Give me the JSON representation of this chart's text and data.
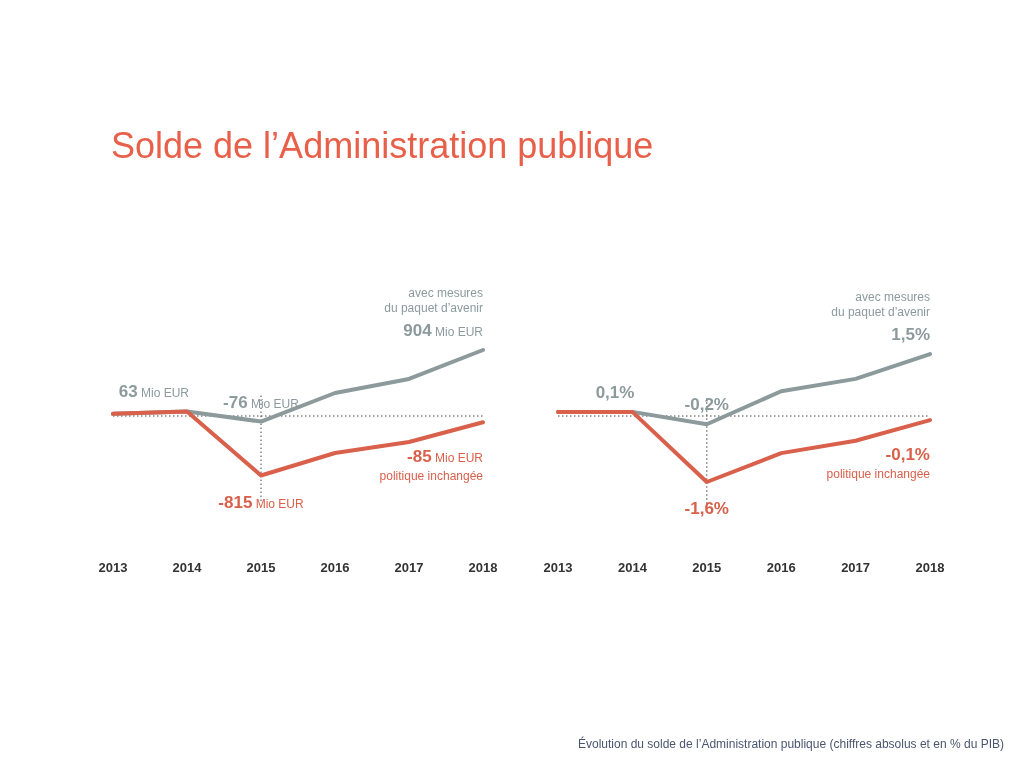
{
  "chart_data": [
    {
      "type": "line",
      "title": "Solde de l’Administration publique",
      "x": [
        2013,
        2014,
        2015,
        2016,
        2017,
        2018
      ],
      "xlim": [
        2013,
        2018
      ],
      "xticks": [
        2013,
        2014,
        2015,
        2016,
        2017,
        2018
      ],
      "tick_labels": "x",
      "grid": false,
      "marker": "none",
      "line_style": "solid",
      "series": [
        {
          "name": "avec mesures\ndu paquet d’avenir",
          "color": "#8c9a9c",
          "values": [
            30,
            63,
            -76,
            315,
            507,
            904
          ],
          "value_labels": [
            null,
            "63 Mio EUR",
            "-76 Mio EUR",
            null,
            null,
            "904 Mio EUR"
          ]
        },
        {
          "name": "politique inchangée",
          "color": "#d9604a",
          "values": [
            30,
            63,
            -815,
            -507,
            -356,
            -85
          ],
          "value_labels": [
            null,
            null,
            "-815 Mio EUR",
            null,
            null,
            "-85 Mio EUR"
          ]
        }
      ],
      "ref_lines": [
        {
          "axis": "y",
          "value": 0,
          "line_style": "dotted"
        },
        {
          "axis": "x",
          "value": 2015,
          "line_style": "dotted"
        }
      ]
    },
    {
      "type": "line",
      "x": [
        2013,
        2014,
        2015,
        2016,
        2017,
        2018
      ],
      "xlim": [
        2013,
        2018
      ],
      "xticks": [
        2013,
        2014,
        2015,
        2016,
        2017,
        2018
      ],
      "tick_labels": "x",
      "grid": false,
      "marker": "none",
      "line_style": "solid",
      "series": [
        {
          "name": "avec mesures\ndu paquet d’avenir",
          "color": "#8c9a9c",
          "values": [
            0.1,
            0.1,
            -0.2,
            0.6,
            0.9,
            1.5
          ],
          "value_labels": [
            null,
            "0,1%",
            "-0,2%",
            null,
            null,
            "1,5%"
          ]
        },
        {
          "name": "politique inchangée",
          "color": "#d9604a",
          "values": [
            0.1,
            0.1,
            -1.6,
            -0.9,
            -0.6,
            -0.1
          ],
          "value_labels": [
            null,
            null,
            "-1,6%",
            null,
            null,
            "-0,1%"
          ]
        }
      ],
      "ref_lines": [
        {
          "axis": "y",
          "value": 0,
          "line_style": "dotted"
        },
        {
          "axis": "x",
          "value": 2015,
          "line_style": "dotted"
        }
      ],
      "annotations": [
        "Évolution du solde de l’Administration publique (chiffres absolus et en % du PIB)"
      ]
    }
  ]
}
